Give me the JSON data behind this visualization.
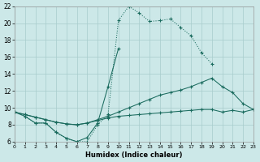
{
  "bg_color": "#cce8e8",
  "grid_color": "#a8cccc",
  "line_color": "#1a6b5e",
  "xlabel": "Humidex (Indice chaleur)",
  "xlim": [
    0,
    23
  ],
  "ylim": [
    6,
    22
  ],
  "xticks": [
    0,
    1,
    2,
    3,
    4,
    5,
    6,
    7,
    8,
    9,
    10,
    11,
    12,
    13,
    14,
    15,
    16,
    17,
    18,
    19,
    20,
    21,
    22,
    23
  ],
  "yticks": [
    6,
    8,
    10,
    12,
    14,
    16,
    18,
    20,
    22
  ],
  "curve1_x": [
    0,
    1,
    2,
    3,
    4,
    5,
    6,
    7,
    8,
    9,
    10,
    11,
    12,
    13,
    14,
    15,
    16,
    17,
    18,
    19
  ],
  "curve1_y": [
    9.5,
    9.0,
    8.2,
    8.2,
    7.1,
    6.4,
    6.0,
    6.0,
    8.0,
    9.2,
    20.3,
    22.0,
    21.2,
    20.2,
    20.3,
    20.5,
    19.5,
    18.5,
    16.5,
    15.2
  ],
  "curve1_dotted": true,
  "curve2_x": [
    0,
    1,
    2,
    3,
    4,
    5,
    6,
    7,
    8,
    9,
    10
  ],
  "curve2_y": [
    9.5,
    9.0,
    8.2,
    8.2,
    7.1,
    6.4,
    6.0,
    6.5,
    8.2,
    12.5,
    17.0
  ],
  "curve2_dotted": false,
  "curve3_x": [
    0,
    1,
    2,
    3,
    4,
    5,
    6,
    7,
    8,
    9,
    10,
    11,
    12,
    13,
    14,
    15,
    16,
    17,
    18,
    19,
    20,
    21,
    22,
    23
  ],
  "curve3_y": [
    9.5,
    9.2,
    8.9,
    8.6,
    8.3,
    8.1,
    8.0,
    8.2,
    8.6,
    9.0,
    9.5,
    10.0,
    10.5,
    11.0,
    11.5,
    11.8,
    12.1,
    12.5,
    13.0,
    13.5,
    12.5,
    11.8,
    10.5,
    9.8
  ],
  "curve3_dotted": false,
  "curve4_x": [
    0,
    1,
    2,
    3,
    4,
    5,
    6,
    7,
    8,
    9,
    10,
    11,
    12,
    13,
    14,
    15,
    16,
    17,
    18,
    19,
    20,
    21,
    22,
    23
  ],
  "curve4_y": [
    9.5,
    9.2,
    8.9,
    8.6,
    8.3,
    8.1,
    8.0,
    8.2,
    8.5,
    8.8,
    9.0,
    9.1,
    9.2,
    9.3,
    9.4,
    9.5,
    9.6,
    9.7,
    9.8,
    9.8,
    9.5,
    9.7,
    9.5,
    9.8
  ],
  "curve4_dotted": false
}
